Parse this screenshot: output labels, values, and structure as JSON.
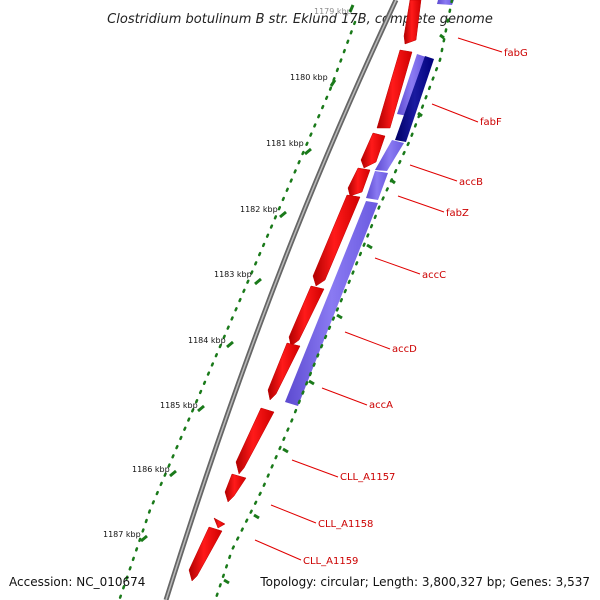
{
  "title": "Clostridium botulinum B str. Eklund 17B, complete genome",
  "accession": "Accession: NC_010674",
  "topology": "Topology: circular; Length: 3,800,327 bp; Genes: 3,537",
  "kbp_labels": [
    "1179 kbp",
    "1180 kbp",
    "1181 kbp",
    "1182 kbp",
    "1183 kbp",
    "1184 kbp",
    "1185 kbp",
    "1186 kbp",
    "1187 kbp"
  ],
  "genes": [
    {
      "name": "fabG"
    },
    {
      "name": "fabF"
    },
    {
      "name": "accB"
    },
    {
      "name": "fabZ"
    },
    {
      "name": "accC"
    },
    {
      "name": "accD"
    },
    {
      "name": "accA"
    },
    {
      "name": "CLL_A1157"
    },
    {
      "name": "CLL_A1158"
    },
    {
      "name": "CLL_A1159"
    }
  ],
  "colors": {
    "cds_forward": "#ff0000",
    "cds_highlight_light": "#7b68ee",
    "cds_highlight_dark": "#00008b",
    "backbone": "#777777",
    "tick_dots": "#1a7a1a",
    "gene_label": "#cc0000"
  }
}
